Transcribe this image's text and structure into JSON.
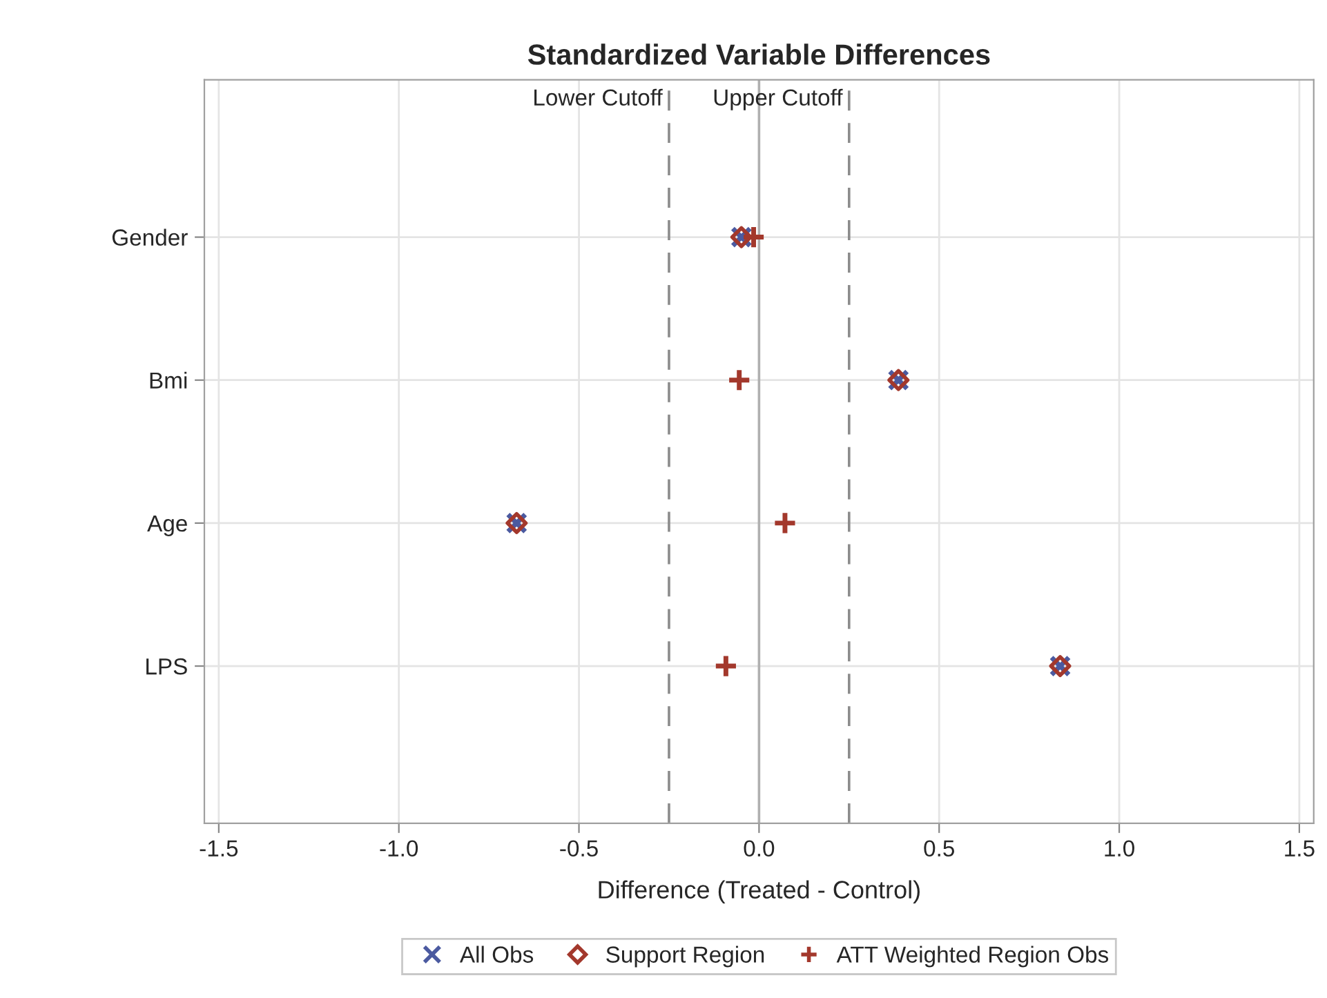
{
  "chart_data": {
    "type": "scatter",
    "orientation": "horizontal",
    "title": "Standardized Variable Differences",
    "xlabel": "Difference (Treated - Control)",
    "categories": [
      "Gender",
      "Bmi",
      "Age",
      "LPS"
    ],
    "series": [
      {
        "name": "All Obs",
        "color": "#4b5aa0",
        "marker": "cross",
        "values": [
          -0.049,
          0.387,
          -0.673,
          0.836
        ]
      },
      {
        "name": "Support Region",
        "color": "#a3382c",
        "marker": "diamond",
        "values": [
          -0.049,
          0.387,
          -0.673,
          0.836
        ]
      },
      {
        "name": "ATT Weighted Region Obs",
        "color": "#a3382c",
        "marker": "plus",
        "values": [
          -0.015,
          -0.055,
          0.072,
          -0.092
        ]
      }
    ],
    "xlim": [
      -1.54,
      1.54
    ],
    "xticks": [
      {
        "value": -1.5,
        "label": "-1.5"
      },
      {
        "value": -1.0,
        "label": "-1.0"
      },
      {
        "value": -0.5,
        "label": "-0.5"
      },
      {
        "value": 0.0,
        "label": "0.0"
      },
      0.5,
      {
        "value": 1.0,
        "label": "1.0"
      },
      1.5
    ],
    "ref_lines": [
      {
        "axis": "x",
        "value": -0.25,
        "label": "Lower Cutoff",
        "color": "#8c8c8c",
        "line_style": "dashed"
      },
      {
        "axis": "x",
        "value": 0.25,
        "label": "Upper Cutoff",
        "color": "#8c8c8c",
        "line_style": "dashed"
      },
      {
        "axis": "x",
        "value": 0,
        "color": "#b0b0b0",
        "line_style": "solid"
      }
    ],
    "grid": true,
    "legend": "bottom"
  }
}
